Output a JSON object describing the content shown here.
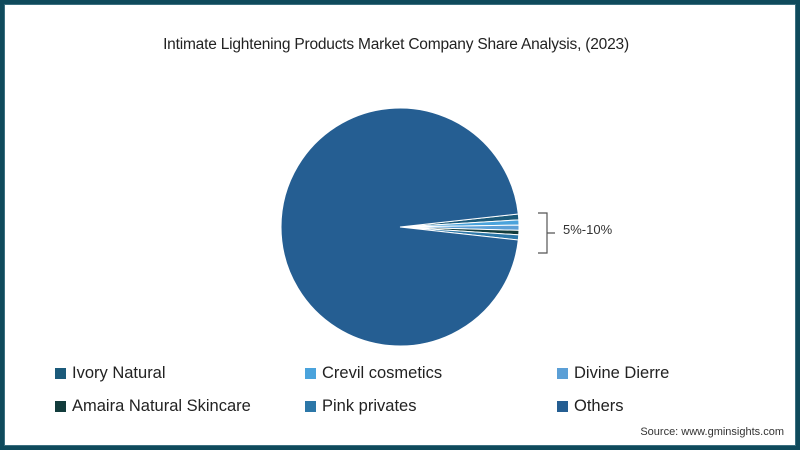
{
  "chart_data": {
    "type": "pie",
    "title": "Intimate Lightening Products Market Company Share Analysis, (2023)",
    "slices": [
      {
        "label": "Ivory Natural",
        "value": 0.8,
        "color": "#1b5a7a"
      },
      {
        "label": "Crevil cosmetics",
        "value": 0.7,
        "color": "#4aa3dc"
      },
      {
        "label": "Divine Dierre",
        "value": 0.7,
        "color": "#5b9fd6"
      },
      {
        "label": "Amaira Natural Skincare",
        "value": 0.6,
        "color": "#123c3c"
      },
      {
        "label": "Pink privates",
        "value": 0.7,
        "color": "#2c77a8"
      },
      {
        "label": "Others",
        "value": 96.5,
        "color": "#255e92"
      }
    ],
    "annotation": "5%-10%",
    "legend_position": "bottom"
  },
  "header": {
    "title": "Intimate Lightening Products Market Company Share Analysis, (2023)"
  },
  "annotation": {
    "label": "5%-10%"
  },
  "legend": [
    {
      "label": "Ivory Natural",
      "color": "#1b5a7a"
    },
    {
      "label": "Crevil cosmetics",
      "color": "#4aa3dc"
    },
    {
      "label": "Divine Dierre",
      "color": "#5b9fd6"
    },
    {
      "label": "Amaira Natural Skincare",
      "color": "#123c3c"
    },
    {
      "label": "Pink privates",
      "color": "#2c77a8"
    },
    {
      "label": "Others",
      "color": "#255e92"
    }
  ],
  "footer": {
    "source": "Source: www.gminsights.com"
  }
}
